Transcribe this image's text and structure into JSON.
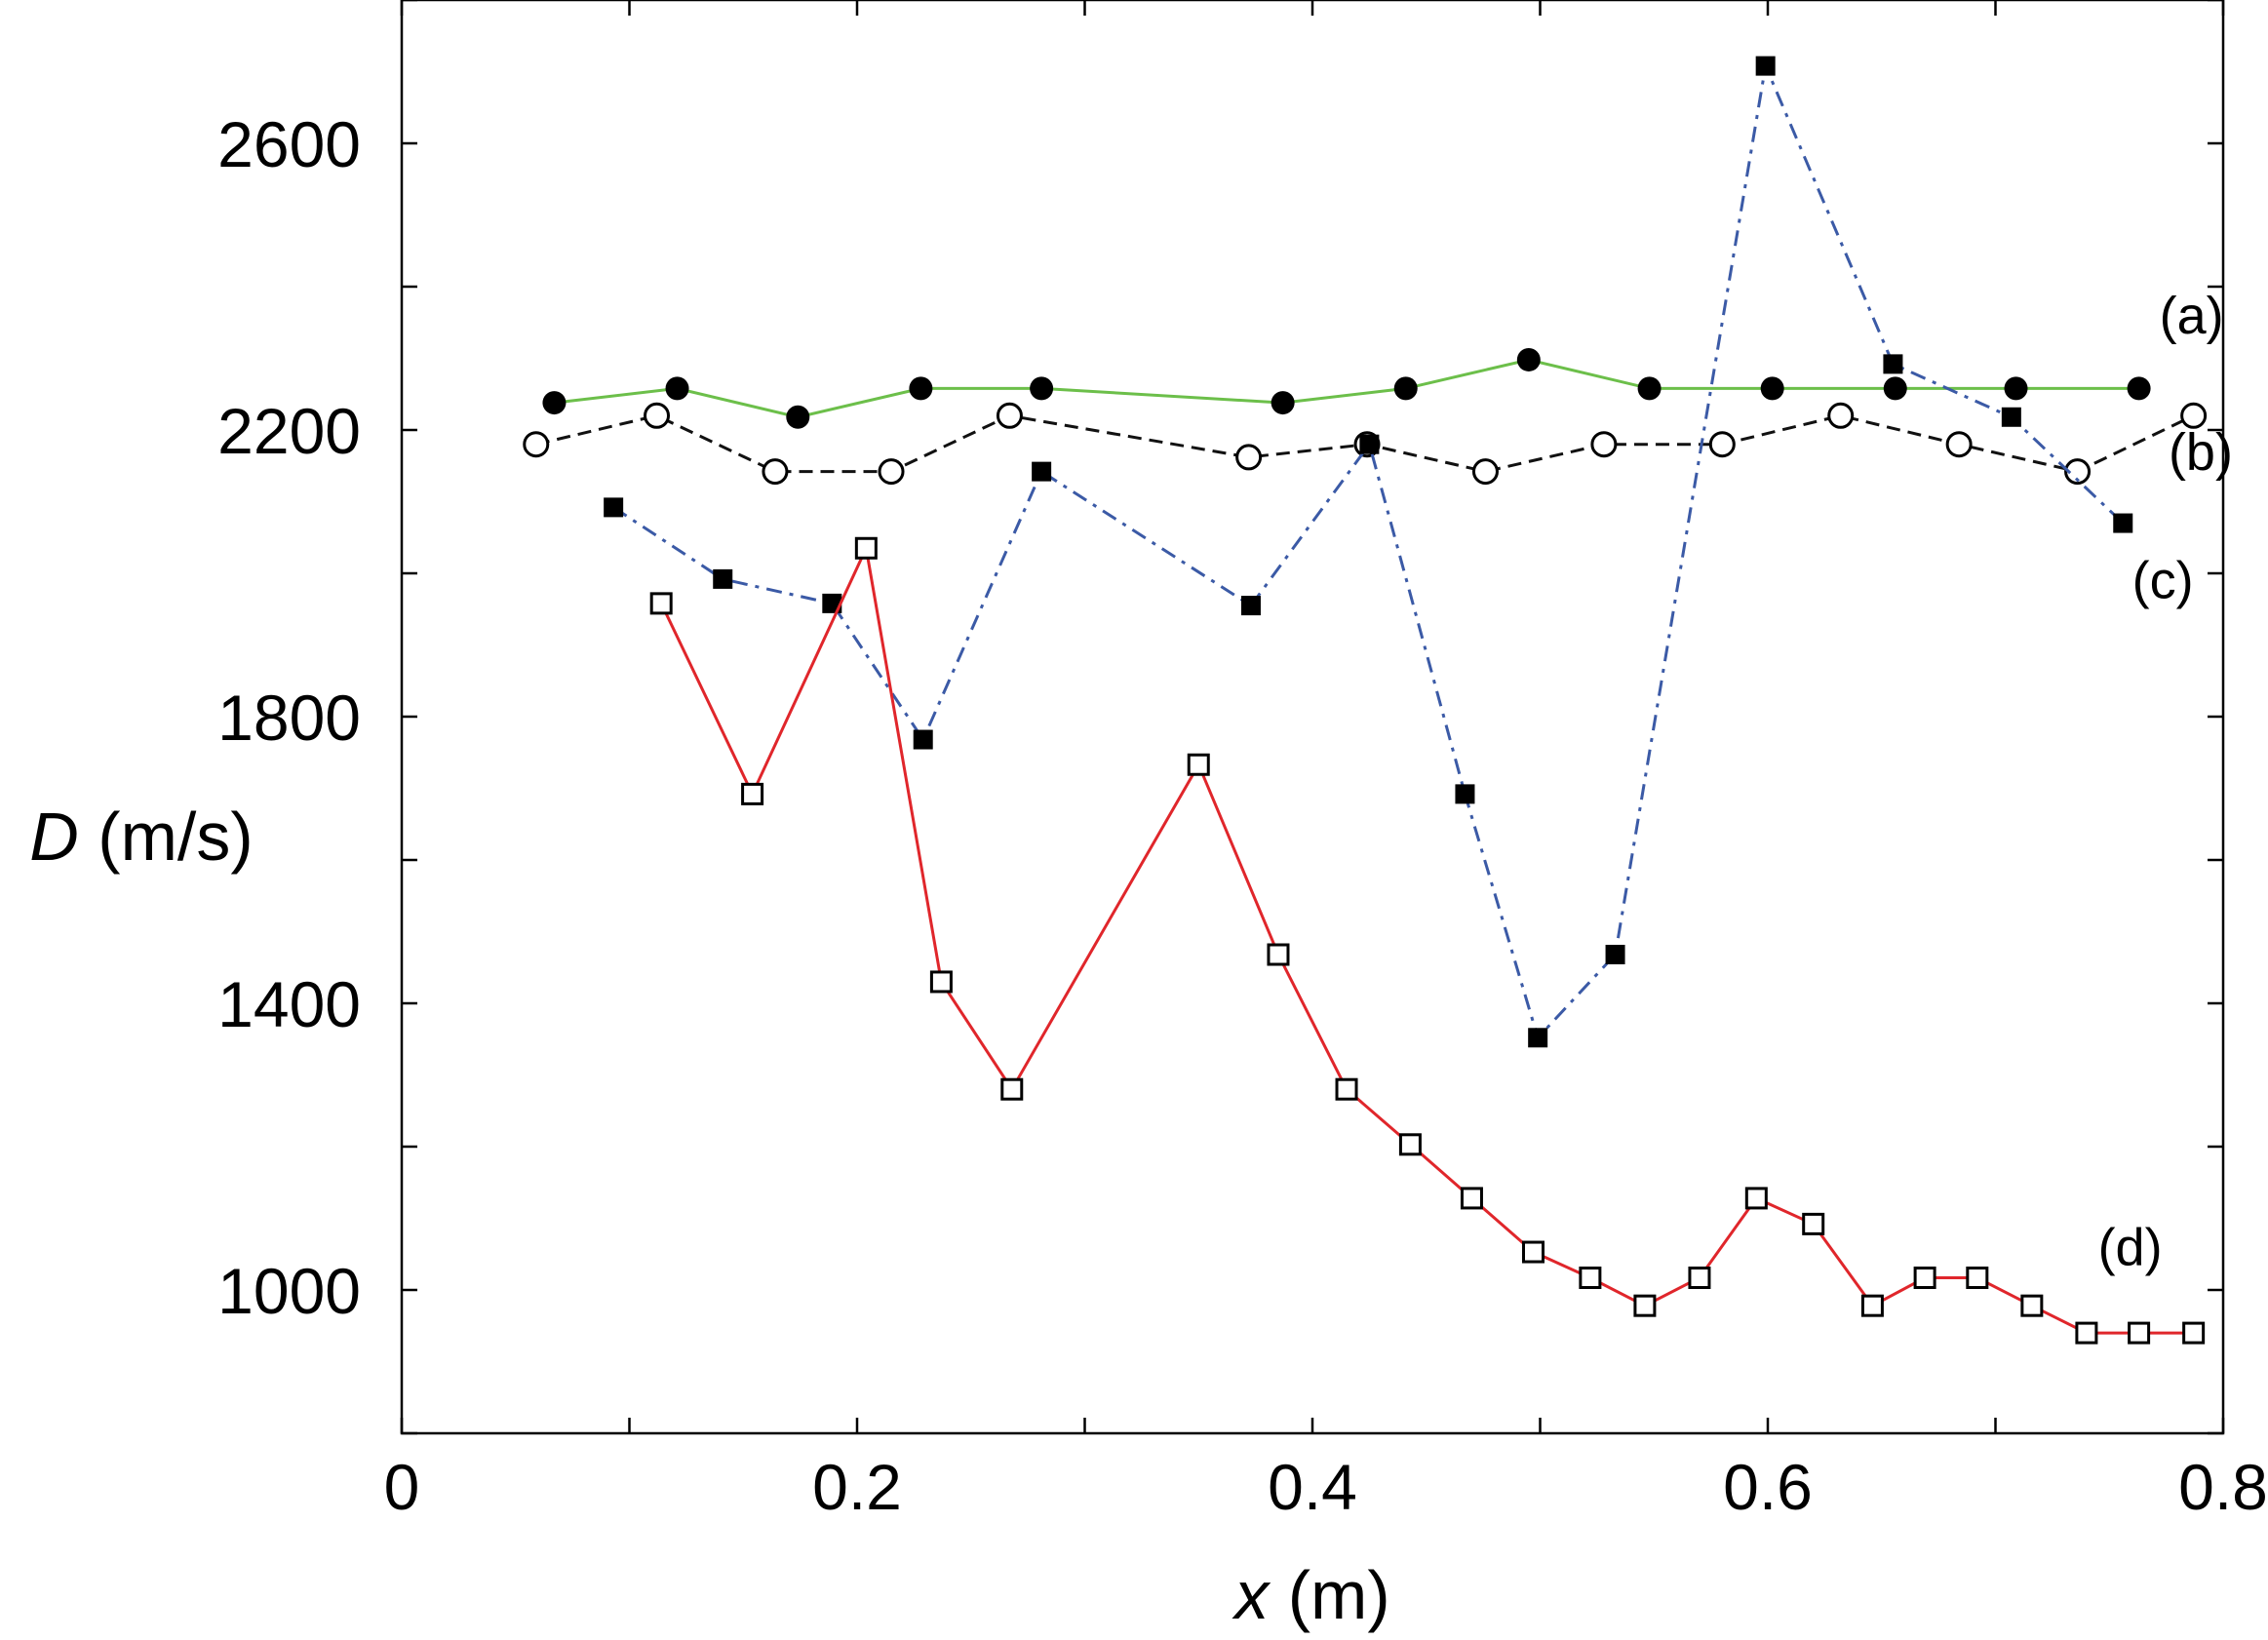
{
  "chart_data": {
    "type": "line",
    "title": "",
    "xlabel_var": "x",
    "xlabel_unit": " (m)",
    "ylabel_var": "D",
    "ylabel_unit": " (m/s)",
    "xlim": [
      0,
      0.8
    ],
    "ylim": [
      800,
      2800
    ],
    "x_ticks": [
      {
        "value": 0,
        "label": "0"
      },
      {
        "value": 0.2,
        "label": "0.2"
      },
      {
        "value": 0.4,
        "label": "0.4"
      },
      {
        "value": 0.6,
        "label": "0.6"
      },
      {
        "value": 0.8,
        "label": "0.8"
      }
    ],
    "x_minor_ticks": [
      0.1,
      0.3,
      0.5,
      0.7
    ],
    "y_ticks": [
      {
        "value": 1000,
        "label": "1000"
      },
      {
        "value": 1400,
        "label": "1400"
      },
      {
        "value": 1800,
        "label": "1800"
      },
      {
        "value": 2200,
        "label": "2200"
      },
      {
        "value": 2600,
        "label": "2600"
      }
    ],
    "y_minor_ticks": [
      800,
      1200,
      1600,
      2000,
      2400,
      2800
    ],
    "grid": false,
    "series": [
      {
        "name": "(a)",
        "color": "#6cbf4a",
        "dash": "solid",
        "marker": "filled-circle",
        "label_pos": [
          0.772,
          2335
        ],
        "x": [
          0.067,
          0.121,
          0.174,
          0.228,
          0.281,
          0.387,
          0.441,
          0.495,
          0.548,
          0.602,
          0.656,
          0.709,
          0.763
        ],
        "y": [
          2238,
          2258,
          2218,
          2258,
          2258,
          2238,
          2258,
          2298,
          2258,
          2258,
          2258,
          2258,
          2258
        ]
      },
      {
        "name": "(b)",
        "color": "#111111",
        "dash": "dashed",
        "marker": "open-circle",
        "label_pos": [
          0.776,
          2144
        ],
        "x": [
          0.059,
          0.112,
          0.164,
          0.215,
          0.267,
          0.372,
          0.424,
          0.476,
          0.528,
          0.58,
          0.632,
          0.684,
          0.736,
          0.787
        ],
        "y": [
          2180,
          2220,
          2142,
          2142,
          2220,
          2162,
          2180,
          2142,
          2180,
          2180,
          2220,
          2180,
          2142,
          2220
        ]
      },
      {
        "name": "(c)",
        "color": "#3b5aa6",
        "dash": "dashdot",
        "marker": "filled-square",
        "label_pos": [
          0.76,
          1965
        ],
        "x": [
          0.093,
          0.141,
          0.189,
          0.229,
          0.281,
          0.373,
          0.425,
          0.467,
          0.499,
          0.533,
          0.599,
          0.655,
          0.707,
          0.756
        ],
        "y": [
          2092,
          1992,
          1958,
          1768,
          2142,
          1955,
          2180,
          1692,
          1352,
          1468,
          2708,
          2292,
          2218,
          2070
        ]
      },
      {
        "name": "(d)",
        "color": "#e0262b",
        "dash": "solid",
        "marker": "open-square",
        "label_pos": [
          0.745,
          1035
        ],
        "x": [
          0.114,
          0.154,
          0.204,
          0.237,
          0.268,
          0.35,
          0.385,
          0.415,
          0.443,
          0.47,
          0.497,
          0.522,
          0.546,
          0.57,
          0.595,
          0.62,
          0.646,
          0.669,
          0.692,
          0.716,
          0.74,
          0.763,
          0.787
        ],
        "y": [
          1958,
          1692,
          2035,
          1430,
          1280,
          1733,
          1468,
          1280,
          1203,
          1128,
          1053,
          1017,
          978,
          1017,
          1128,
          1092,
          978,
          1017,
          1017,
          978,
          940,
          940,
          940
        ]
      }
    ]
  }
}
